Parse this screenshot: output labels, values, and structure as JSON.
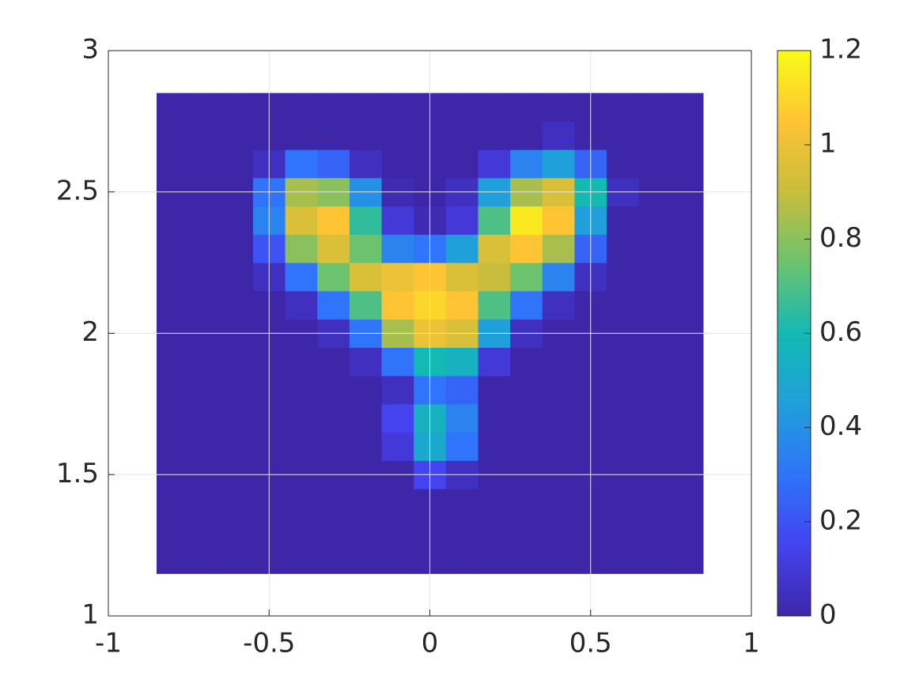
{
  "chart_data": {
    "type": "heatmap",
    "x": [
      -0.8,
      -0.7,
      -0.6,
      -0.5,
      -0.4,
      -0.3,
      -0.2,
      -0.1,
      0,
      0.1,
      0.2,
      0.3,
      0.4,
      0.5,
      0.6,
      0.7,
      0.8
    ],
    "y": [
      1.2,
      1.3,
      1.4,
      1.5,
      1.6,
      1.7,
      1.8,
      1.9,
      2.0,
      2.1,
      2.2,
      2.3,
      2.4,
      2.5,
      2.6,
      2.7,
      2.8
    ],
    "values": [
      [
        0,
        0,
        0,
        0,
        0,
        0,
        0,
        0,
        0,
        0,
        0,
        0,
        0,
        0,
        0,
        0,
        0
      ],
      [
        0,
        0,
        0,
        0,
        0,
        0,
        0,
        0,
        0,
        0,
        0,
        0,
        0,
        0,
        0,
        0,
        0
      ],
      [
        0,
        0,
        0,
        0,
        0,
        0,
        0,
        0,
        0,
        0,
        0,
        0,
        0,
        0,
        0,
        0,
        0
      ],
      [
        0,
        0,
        0,
        0,
        0,
        0,
        0,
        0,
        0.15,
        0.05,
        0,
        0,
        0,
        0,
        0,
        0,
        0
      ],
      [
        0,
        0,
        0,
        0,
        0,
        0,
        0,
        0.1,
        0.5,
        0.3,
        0,
        0,
        0,
        0,
        0,
        0,
        0
      ],
      [
        0,
        0,
        0,
        0,
        0,
        0,
        0,
        0.15,
        0.55,
        0.35,
        0,
        0,
        0,
        0,
        0,
        0,
        0
      ],
      [
        0,
        0,
        0,
        0,
        0,
        0,
        0,
        0.05,
        0.3,
        0.25,
        0,
        0,
        0,
        0,
        0,
        0,
        0
      ],
      [
        0,
        0,
        0,
        0,
        0,
        0,
        0.05,
        0.3,
        0.6,
        0.55,
        0.1,
        0,
        0,
        0,
        0,
        0,
        0
      ],
      [
        0,
        0,
        0,
        0,
        0,
        0.05,
        0.3,
        0.85,
        1.0,
        0.95,
        0.45,
        0.05,
        0,
        0,
        0,
        0,
        0
      ],
      [
        0,
        0,
        0,
        0,
        0.05,
        0.3,
        0.7,
        1.05,
        1.1,
        1.05,
        0.7,
        0.3,
        0.05,
        0,
        0,
        0,
        0
      ],
      [
        0,
        0,
        0,
        0.05,
        0.3,
        0.75,
        0.95,
        1.0,
        1.05,
        0.95,
        0.9,
        0.75,
        0.35,
        0.05,
        0,
        0,
        0
      ],
      [
        0,
        0,
        0,
        0.2,
        0.8,
        0.95,
        0.75,
        0.35,
        0.3,
        0.45,
        0.95,
        1.05,
        0.85,
        0.25,
        0,
        0,
        0
      ],
      [
        0,
        0,
        0,
        0.35,
        0.95,
        1.05,
        0.65,
        0.1,
        0.02,
        0.1,
        0.7,
        1.15,
        1.05,
        0.45,
        0,
        0,
        0
      ],
      [
        0,
        0,
        0,
        0.3,
        0.85,
        0.8,
        0.4,
        0.02,
        0,
        0.05,
        0.45,
        0.85,
        0.95,
        0.6,
        0.05,
        0,
        0
      ],
      [
        0,
        0,
        0,
        0.05,
        0.3,
        0.25,
        0.05,
        0,
        0,
        0,
        0.1,
        0.35,
        0.45,
        0.25,
        0,
        0,
        0
      ],
      [
        0,
        0,
        0,
        0,
        0,
        0,
        0,
        0,
        0,
        0,
        0,
        0,
        0.05,
        0,
        0,
        0,
        0
      ],
      [
        0,
        0,
        0,
        0,
        0,
        0,
        0,
        0,
        0,
        0,
        0,
        0,
        0,
        0,
        0,
        0,
        0
      ]
    ],
    "xlim": [
      -1,
      1
    ],
    "ylim": [
      1,
      3
    ],
    "xticks": [
      -1,
      -0.5,
      0,
      0.5,
      1
    ],
    "yticks": [
      1,
      1.5,
      2,
      2.5,
      3
    ],
    "clim": [
      0,
      1.2
    ],
    "cticks": [
      0,
      0.2,
      0.4,
      0.6,
      0.8,
      1,
      1.2
    ],
    "colormap": [
      "#3e26a8",
      "#4443f0",
      "#2f74fa",
      "#1fa0da",
      "#13b9b3",
      "#6cc36e",
      "#c8bd3c",
      "#fec434",
      "#f9fb15"
    ],
    "grid": true
  }
}
